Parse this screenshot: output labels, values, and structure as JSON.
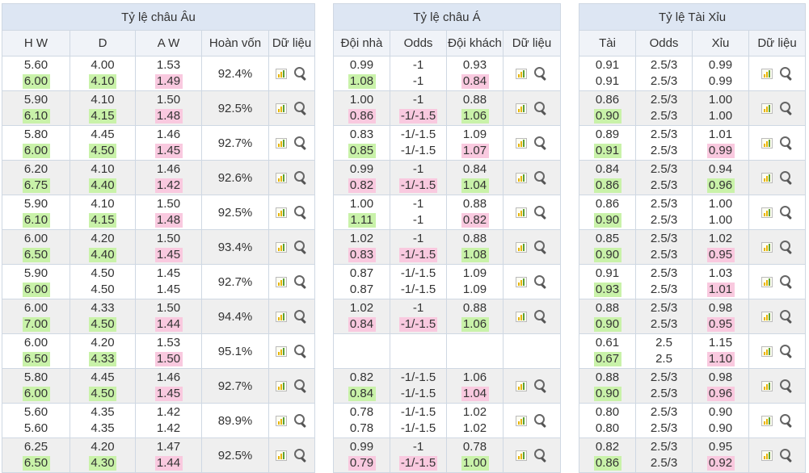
{
  "eu": {
    "title": "Tỷ lệ châu Âu",
    "headers": [
      "H W",
      "D",
      "A W",
      "Hoàn vốn",
      "Dữ liệu"
    ],
    "rows": [
      {
        "hw": [
          "5.60",
          "6.00"
        ],
        "d": [
          "4.00",
          "4.10"
        ],
        "aw": [
          "1.53",
          "1.49"
        ],
        "ret": "92.4%",
        "hl": {
          "hw": "g",
          "d": "g",
          "aw": "r"
        }
      },
      {
        "hw": [
          "5.90",
          "6.10"
        ],
        "d": [
          "4.10",
          "4.15"
        ],
        "aw": [
          "1.50",
          "1.48"
        ],
        "ret": "92.5%",
        "hl": {
          "hw": "g",
          "d": "g",
          "aw": "r"
        }
      },
      {
        "hw": [
          "5.80",
          "6.00"
        ],
        "d": [
          "4.45",
          "4.50"
        ],
        "aw": [
          "1.46",
          "1.45"
        ],
        "ret": "92.7%",
        "hl": {
          "hw": "g",
          "d": "g",
          "aw": "r"
        }
      },
      {
        "hw": [
          "6.20",
          "6.75"
        ],
        "d": [
          "4.10",
          "4.40"
        ],
        "aw": [
          "1.46",
          "1.42"
        ],
        "ret": "92.6%",
        "hl": {
          "hw": "g",
          "d": "g",
          "aw": "r"
        }
      },
      {
        "hw": [
          "5.90",
          "6.10"
        ],
        "d": [
          "4.10",
          "4.15"
        ],
        "aw": [
          "1.50",
          "1.48"
        ],
        "ret": "92.5%",
        "hl": {
          "hw": "g",
          "d": "g",
          "aw": "r"
        }
      },
      {
        "hw": [
          "6.00",
          "6.50"
        ],
        "d": [
          "4.20",
          "4.40"
        ],
        "aw": [
          "1.50",
          "1.45"
        ],
        "ret": "93.4%",
        "hl": {
          "hw": "g",
          "d": "g",
          "aw": "r"
        }
      },
      {
        "hw": [
          "5.90",
          "6.00"
        ],
        "d": [
          "4.50",
          "4.50"
        ],
        "aw": [
          "1.45",
          "1.45"
        ],
        "ret": "92.7%",
        "hl": {
          "hw": "g",
          "d": "",
          "aw": ""
        }
      },
      {
        "hw": [
          "6.00",
          "7.00"
        ],
        "d": [
          "4.33",
          "4.50"
        ],
        "aw": [
          "1.50",
          "1.44"
        ],
        "ret": "94.4%",
        "hl": {
          "hw": "g",
          "d": "g",
          "aw": "r"
        }
      },
      {
        "hw": [
          "6.00",
          "6.50"
        ],
        "d": [
          "4.20",
          "4.33"
        ],
        "aw": [
          "1.53",
          "1.50"
        ],
        "ret": "95.1%",
        "hl": {
          "hw": "g",
          "d": "g",
          "aw": "r"
        }
      },
      {
        "hw": [
          "5.80",
          "6.00"
        ],
        "d": [
          "4.45",
          "4.50"
        ],
        "aw": [
          "1.46",
          "1.45"
        ],
        "ret": "92.7%",
        "hl": {
          "hw": "g",
          "d": "g",
          "aw": "r"
        }
      },
      {
        "hw": [
          "5.60",
          "5.60"
        ],
        "d": [
          "4.35",
          "4.35"
        ],
        "aw": [
          "1.42",
          "1.42"
        ],
        "ret": "89.9%",
        "hl": {
          "hw": "",
          "d": "",
          "aw": ""
        }
      },
      {
        "hw": [
          "6.25",
          "6.50"
        ],
        "d": [
          "4.20",
          "4.30"
        ],
        "aw": [
          "1.47",
          "1.44"
        ],
        "ret": "92.5%",
        "hl": {
          "hw": "g",
          "d": "g",
          "aw": "r"
        }
      }
    ]
  },
  "asia": {
    "title": "Tỷ lệ châu Á",
    "headers": [
      "Đội nhà",
      "Odds",
      "Đội khách",
      "Dữ liệu"
    ],
    "rows": [
      {
        "home": [
          "0.99",
          "1.08"
        ],
        "odds": [
          "-1",
          "-1"
        ],
        "away": [
          "0.93",
          "0.84"
        ],
        "hl": {
          "home": "g",
          "odds": "",
          "away": "r"
        }
      },
      {
        "home": [
          "1.00",
          "0.86"
        ],
        "odds": [
          "-1",
          "-1/-1.5"
        ],
        "away": [
          "0.88",
          "1.06"
        ],
        "hl": {
          "home": "r",
          "odds": "r",
          "away": "g"
        }
      },
      {
        "home": [
          "0.83",
          "0.85"
        ],
        "odds": [
          "-1/-1.5",
          "-1/-1.5"
        ],
        "away": [
          "1.09",
          "1.07"
        ],
        "hl": {
          "home": "g",
          "odds": "",
          "away": "r"
        }
      },
      {
        "home": [
          "0.99",
          "0.82"
        ],
        "odds": [
          "-1",
          "-1/-1.5"
        ],
        "away": [
          "0.84",
          "1.04"
        ],
        "hl": {
          "home": "r",
          "odds": "r",
          "away": "g"
        }
      },
      {
        "home": [
          "1.00",
          "1.11"
        ],
        "odds": [
          "-1",
          "-1"
        ],
        "away": [
          "0.88",
          "0.82"
        ],
        "hl": {
          "home": "g",
          "odds": "",
          "away": "r"
        }
      },
      {
        "home": [
          "1.02",
          "0.83"
        ],
        "odds": [
          "-1",
          "-1/-1.5"
        ],
        "away": [
          "0.88",
          "1.08"
        ],
        "hl": {
          "home": "r",
          "odds": "r",
          "away": "g"
        }
      },
      {
        "home": [
          "0.87",
          "0.87"
        ],
        "odds": [
          "-1/-1.5",
          "-1/-1.5"
        ],
        "away": [
          "1.09",
          "1.09"
        ],
        "hl": {
          "home": "",
          "odds": "",
          "away": ""
        }
      },
      {
        "home": [
          "1.02",
          "0.84"
        ],
        "odds": [
          "-1",
          "-1/-1.5"
        ],
        "away": [
          "0.88",
          "1.06"
        ],
        "hl": {
          "home": "r",
          "odds": "r",
          "away": "g"
        }
      },
      {
        "home": [
          "",
          ""
        ],
        "odds": [
          "",
          ""
        ],
        "away": [
          "",
          ""
        ],
        "hl": {
          "home": "",
          "odds": "",
          "away": ""
        },
        "empty": true
      },
      {
        "home": [
          "0.82",
          "0.84"
        ],
        "odds": [
          "-1/-1.5",
          "-1/-1.5"
        ],
        "away": [
          "1.06",
          "1.04"
        ],
        "hl": {
          "home": "g",
          "odds": "",
          "away": "r"
        }
      },
      {
        "home": [
          "0.78",
          "0.78"
        ],
        "odds": [
          "-1/-1.5",
          "-1/-1.5"
        ],
        "away": [
          "1.02",
          "1.02"
        ],
        "hl": {
          "home": "",
          "odds": "",
          "away": ""
        }
      },
      {
        "home": [
          "0.99",
          "0.79"
        ],
        "odds": [
          "-1",
          "-1/-1.5"
        ],
        "away": [
          "0.78",
          "1.00"
        ],
        "hl": {
          "home": "r",
          "odds": "r",
          "away": "g"
        }
      }
    ]
  },
  "ou": {
    "title": "Tỷ lệ Tài Xỉu",
    "headers": [
      "Tài",
      "Odds",
      "Xỉu",
      "Dữ liệu"
    ],
    "rows": [
      {
        "over": [
          "0.91",
          "0.91"
        ],
        "odds": [
          "2.5/3",
          "2.5/3"
        ],
        "under": [
          "0.99",
          "0.99"
        ],
        "hl": {
          "over": "",
          "odds": "",
          "under": ""
        }
      },
      {
        "over": [
          "0.86",
          "0.90"
        ],
        "odds": [
          "2.5/3",
          "2.5/3"
        ],
        "under": [
          "1.00",
          "1.00"
        ],
        "hl": {
          "over": "g",
          "odds": "",
          "under": ""
        }
      },
      {
        "over": [
          "0.89",
          "0.91"
        ],
        "odds": [
          "2.5/3",
          "2.5/3"
        ],
        "under": [
          "1.01",
          "0.99"
        ],
        "hl": {
          "over": "g",
          "odds": "",
          "under": "r"
        }
      },
      {
        "over": [
          "0.84",
          "0.86"
        ],
        "odds": [
          "2.5/3",
          "2.5/3"
        ],
        "under": [
          "0.94",
          "0.96"
        ],
        "hl": {
          "over": "g",
          "odds": "",
          "under": "g"
        }
      },
      {
        "over": [
          "0.86",
          "0.90"
        ],
        "odds": [
          "2.5/3",
          "2.5/3"
        ],
        "under": [
          "1.00",
          "1.00"
        ],
        "hl": {
          "over": "g",
          "odds": "",
          "under": ""
        }
      },
      {
        "over": [
          "0.85",
          "0.90"
        ],
        "odds": [
          "2.5/3",
          "2.5/3"
        ],
        "under": [
          "1.02",
          "0.95"
        ],
        "hl": {
          "over": "g",
          "odds": "",
          "under": "r"
        }
      },
      {
        "over": [
          "0.91",
          "0.93"
        ],
        "odds": [
          "2.5/3",
          "2.5/3"
        ],
        "under": [
          "1.03",
          "1.01"
        ],
        "hl": {
          "over": "g",
          "odds": "",
          "under": "r"
        }
      },
      {
        "over": [
          "0.88",
          "0.90"
        ],
        "odds": [
          "2.5/3",
          "2.5/3"
        ],
        "under": [
          "0.98",
          "0.95"
        ],
        "hl": {
          "over": "g",
          "odds": "",
          "under": "r"
        }
      },
      {
        "over": [
          "0.61",
          "0.67"
        ],
        "odds": [
          "2.5",
          "2.5"
        ],
        "under": [
          "1.15",
          "1.10"
        ],
        "hl": {
          "over": "g",
          "odds": "",
          "under": "r"
        }
      },
      {
        "over": [
          "0.88",
          "0.90"
        ],
        "odds": [
          "2.5/3",
          "2.5/3"
        ],
        "under": [
          "0.98",
          "0.96"
        ],
        "hl": {
          "over": "g",
          "odds": "",
          "under": "r"
        }
      },
      {
        "over": [
          "0.80",
          "0.80"
        ],
        "odds": [
          "2.5/3",
          "2.5/3"
        ],
        "under": [
          "0.90",
          "0.90"
        ],
        "hl": {
          "over": "",
          "odds": "",
          "under": ""
        }
      },
      {
        "over": [
          "0.82",
          "0.86"
        ],
        "odds": [
          "2.5/3",
          "2.5/3"
        ],
        "under": [
          "0.95",
          "0.92"
        ],
        "hl": {
          "over": "g",
          "odds": "",
          "under": "r"
        }
      }
    ]
  },
  "icons": {
    "chart": "chart-icon",
    "search": "search-icon"
  },
  "colors": {
    "header_bg": "#dde6f3",
    "subheader_bg": "#f0f3f8",
    "up": "#c9f2a9",
    "down": "#f9c9df",
    "alt_row": "#efefef"
  }
}
